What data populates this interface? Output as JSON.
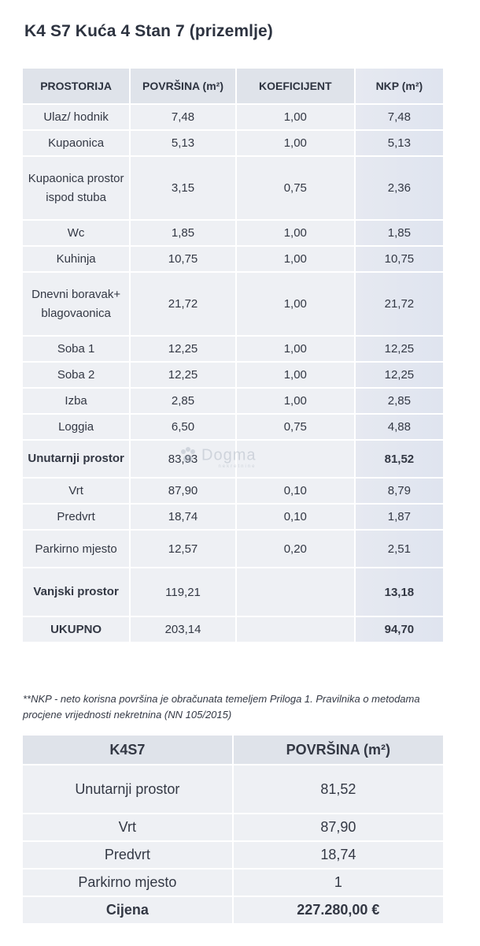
{
  "title": "K4 S7 Kuća 4 Stan 7 (prizemlje)",
  "table1": {
    "headers": [
      "PROSTORIJA",
      "POVRŠINA (m²)",
      "KOEFICIJENT",
      "NKP (m²)"
    ],
    "rows": [
      {
        "room": "Ulaz/ hodnik",
        "area": "7,48",
        "coef": "1,00",
        "nkp": "7,48"
      },
      {
        "room": "Kupaonica",
        "area": "5,13",
        "coef": "1,00",
        "nkp": "5,13"
      },
      {
        "room": "Kupaonica prostor ispod stuba",
        "area": "3,15",
        "coef": "0,75",
        "nkp": "2,36"
      },
      {
        "room": "Wc",
        "area": "1,85",
        "coef": "1,00",
        "nkp": "1,85"
      },
      {
        "room": "Kuhinja",
        "area": "10,75",
        "coef": "1,00",
        "nkp": "10,75"
      },
      {
        "room": "Dnevni boravak+ blagovaonica",
        "area": "21,72",
        "coef": "1,00",
        "nkp": "21,72"
      },
      {
        "room": "Soba 1",
        "area": "12,25",
        "coef": "1,00",
        "nkp": "12,25"
      },
      {
        "room": "Soba 2",
        "area": "12,25",
        "coef": "1,00",
        "nkp": "12,25"
      },
      {
        "room": "Izba",
        "area": "2,85",
        "coef": "1,00",
        "nkp": "2,85"
      },
      {
        "room": "Loggia",
        "area": "6,50",
        "coef": "0,75",
        "nkp": "4,88"
      },
      {
        "room": "Unutarnji prostor",
        "area": "83,93",
        "coef": "",
        "nkp": "81,52"
      },
      {
        "room": "Vrt",
        "area": "87,90",
        "coef": "0,10",
        "nkp": "8,79"
      },
      {
        "room": "Predvrt",
        "area": "18,74",
        "coef": "0,10",
        "nkp": "1,87"
      },
      {
        "room": "Parkirno mjesto",
        "area": "12,57",
        "coef": "0,20",
        "nkp": "2,51"
      },
      {
        "room": "Vanjski prostor",
        "area": "119,21",
        "coef": "",
        "nkp": "13,18"
      },
      {
        "room": "UKUPNO",
        "area": "203,14",
        "coef": "",
        "nkp": "94,70"
      }
    ]
  },
  "note": "**NKP - neto korisna površina je obračunata temeljem Priloga 1. Pravilnika o metodama procjene vrijednosti nekretnina (NN 105/2015)",
  "table2": {
    "headers": [
      "K4S7",
      "POVRŠINA (m²)"
    ],
    "rows": [
      {
        "label": "Unutarnji prostor",
        "value": "81,52"
      },
      {
        "label": "Vrt",
        "value": "87,90"
      },
      {
        "label": "Predvrt",
        "value": "18,74"
      },
      {
        "label": "Parkirno mjesto",
        "value": "1"
      },
      {
        "label": "Cijena",
        "value": "227.280,00 €"
      }
    ]
  },
  "watermark": {
    "text": "Dogma",
    "sub": "nekretnine"
  }
}
